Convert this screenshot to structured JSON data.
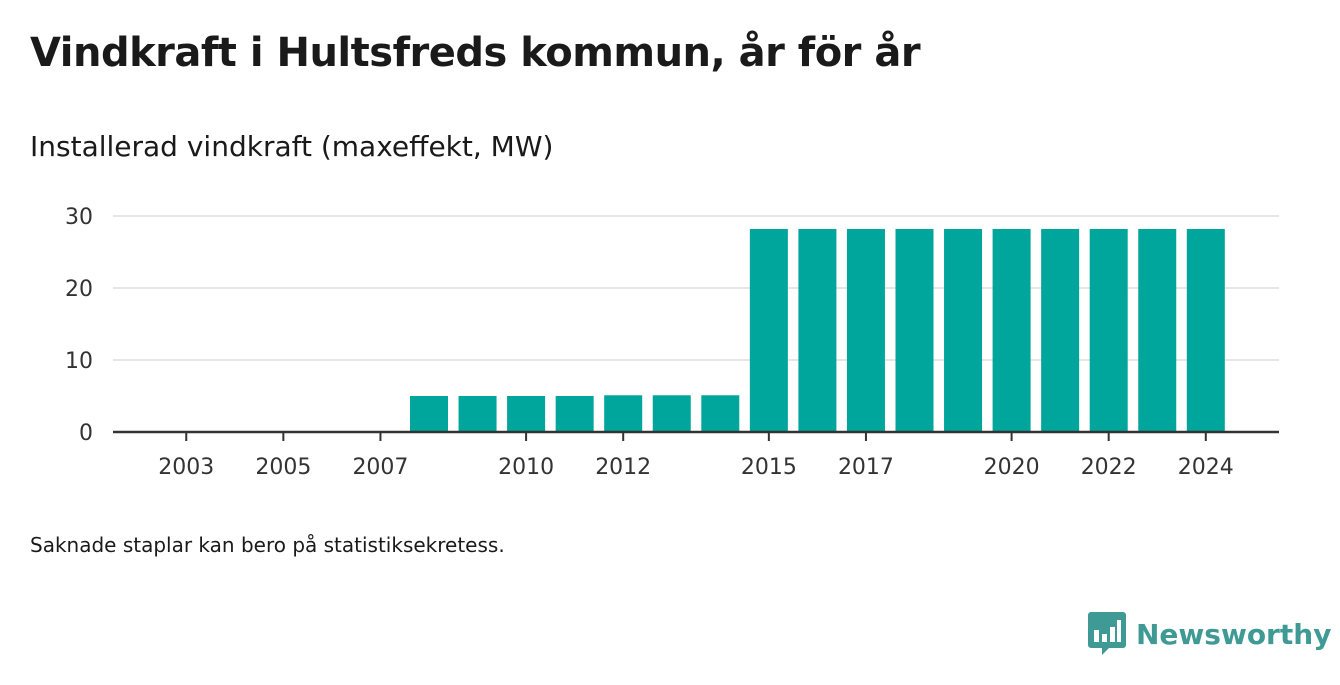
{
  "colors": {
    "bar": "#00a59b",
    "grid": "#dedede",
    "axis": "#333333",
    "brand": "#3f9a95"
  },
  "chart_data": {
    "type": "bar",
    "title": "Vindkraft i Hultsfreds kommun, år för år",
    "subtitle": "Installerad vindkraft (maxeffekt, MW)",
    "categories": [
      "2002",
      "2003",
      "2004",
      "2005",
      "2006",
      "2007",
      "2008",
      "2009",
      "2010",
      "2011",
      "2012",
      "2013",
      "2014",
      "2015",
      "2016",
      "2017",
      "2018",
      "2019",
      "2020",
      "2021",
      "2022",
      "2023",
      "2024"
    ],
    "values": [
      0,
      0,
      0,
      0,
      0,
      0,
      5,
      5,
      5,
      5,
      5.1,
      5.1,
      5.1,
      28.2,
      28.2,
      28.2,
      28.2,
      28.2,
      28.2,
      28.2,
      28.2,
      28.2,
      28.2
    ],
    "x_tick_labels": [
      "2003",
      "2005",
      "2007",
      "2010",
      "2012",
      "2015",
      "2017",
      "2020",
      "2022",
      "2024"
    ],
    "y_ticks": [
      "0",
      "10",
      "20",
      "30"
    ],
    "ylim": [
      0,
      30
    ],
    "grid": true,
    "legend": "none"
  },
  "note": "Saknade staplar kan bero på statistiksekretess.",
  "brand": {
    "name": "Newsworthy",
    "icon": "newsworthy-logo-icon"
  }
}
